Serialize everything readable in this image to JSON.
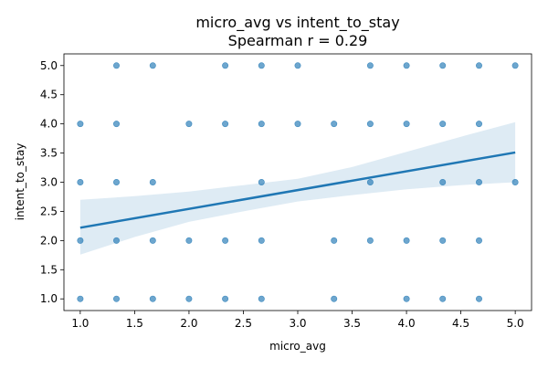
{
  "chart_data": {
    "type": "scatter",
    "title": "micro_avg vs intent_to_stay",
    "subtitle": "Spearman r = 0.29",
    "xlabel": "micro_avg",
    "ylabel": "intent_to_stay",
    "xlim": [
      0.85,
      5.15
    ],
    "ylim": [
      0.8,
      5.2
    ],
    "xticks": [
      1.0,
      1.5,
      2.0,
      2.5,
      3.0,
      3.5,
      4.0,
      4.5,
      5.0
    ],
    "yticks": [
      1.0,
      1.5,
      2.0,
      2.5,
      3.0,
      3.5,
      4.0,
      4.5,
      5.0
    ],
    "grid": false,
    "point_color": "#1f77b4",
    "points": [
      {
        "x": 1.333,
        "y": 5
      },
      {
        "x": 1.667,
        "y": 5
      },
      {
        "x": 2.333,
        "y": 5
      },
      {
        "x": 2.667,
        "y": 5
      },
      {
        "x": 3.0,
        "y": 5
      },
      {
        "x": 3.667,
        "y": 5
      },
      {
        "x": 4.0,
        "y": 5
      },
      {
        "x": 4.333,
        "y": 5
      },
      {
        "x": 4.667,
        "y": 5
      },
      {
        "x": 5.0,
        "y": 5
      },
      {
        "x": 1.0,
        "y": 4
      },
      {
        "x": 1.333,
        "y": 4
      },
      {
        "x": 2.0,
        "y": 4
      },
      {
        "x": 2.333,
        "y": 4
      },
      {
        "x": 2.667,
        "y": 4
      },
      {
        "x": 3.0,
        "y": 4
      },
      {
        "x": 3.333,
        "y": 4
      },
      {
        "x": 3.667,
        "y": 4
      },
      {
        "x": 4.0,
        "y": 4
      },
      {
        "x": 4.333,
        "y": 4
      },
      {
        "x": 4.667,
        "y": 4
      },
      {
        "x": 1.0,
        "y": 3
      },
      {
        "x": 1.333,
        "y": 3
      },
      {
        "x": 1.667,
        "y": 3
      },
      {
        "x": 2.667,
        "y": 3
      },
      {
        "x": 3.667,
        "y": 3
      },
      {
        "x": 4.333,
        "y": 3
      },
      {
        "x": 4.667,
        "y": 3
      },
      {
        "x": 5.0,
        "y": 3
      },
      {
        "x": 1.0,
        "y": 2
      },
      {
        "x": 1.333,
        "y": 2
      },
      {
        "x": 1.667,
        "y": 2
      },
      {
        "x": 2.0,
        "y": 2
      },
      {
        "x": 2.333,
        "y": 2
      },
      {
        "x": 2.667,
        "y": 2
      },
      {
        "x": 3.333,
        "y": 2
      },
      {
        "x": 3.667,
        "y": 2
      },
      {
        "x": 4.0,
        "y": 2
      },
      {
        "x": 4.333,
        "y": 2
      },
      {
        "x": 4.667,
        "y": 2
      },
      {
        "x": 1.0,
        "y": 1
      },
      {
        "x": 1.333,
        "y": 1
      },
      {
        "x": 1.667,
        "y": 1
      },
      {
        "x": 2.0,
        "y": 1
      },
      {
        "x": 2.333,
        "y": 1
      },
      {
        "x": 2.667,
        "y": 1
      },
      {
        "x": 3.333,
        "y": 1
      },
      {
        "x": 4.0,
        "y": 1
      },
      {
        "x": 4.333,
        "y": 1
      },
      {
        "x": 4.667,
        "y": 1
      }
    ],
    "regression_line": {
      "x": [
        1.0,
        5.0
      ],
      "y": [
        2.22,
        3.51
      ],
      "color": "#1f77b4"
    },
    "confidence_band": {
      "x": [
        1.0,
        1.5,
        2.0,
        2.5,
        3.0,
        3.5,
        4.0,
        4.5,
        5.0
      ],
      "upper": [
        2.7,
        2.76,
        2.84,
        2.95,
        3.06,
        3.26,
        3.52,
        3.78,
        4.03
      ],
      "lower": [
        1.76,
        2.06,
        2.32,
        2.5,
        2.67,
        2.78,
        2.88,
        2.95,
        3.0
      ],
      "color": "#1f77b4",
      "opacity": 0.15
    }
  }
}
